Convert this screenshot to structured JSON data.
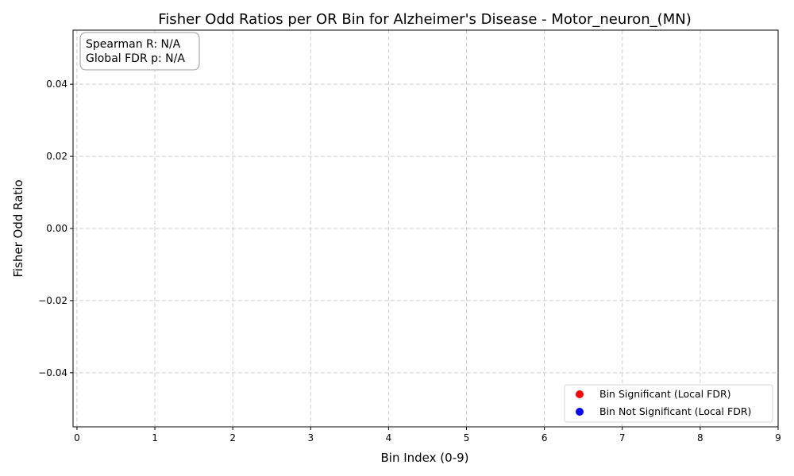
{
  "chart_data": {
    "type": "scatter",
    "title": "Fisher Odd Ratios per OR Bin for Alzheimer's Disease - Motor_neuron_(MN)",
    "xlabel": "Bin Index (0-9)",
    "ylabel": "Fisher Odd Ratio",
    "xlim": [
      -0.05,
      9
    ],
    "ylim": [
      -0.055,
      0.055
    ],
    "xticks": [
      0,
      1,
      2,
      3,
      4,
      5,
      6,
      7,
      8,
      9
    ],
    "xtick_labels": [
      "0",
      "1",
      "2",
      "3",
      "4",
      "5",
      "6",
      "7",
      "8",
      "9"
    ],
    "yticks": [
      0.04,
      0.02,
      0.0,
      -0.02,
      -0.04
    ],
    "ytick_labels": [
      "0.04",
      "0.02",
      "0.00",
      "−0.02",
      "−0.04"
    ],
    "grid": true,
    "series": [
      {
        "name": "Bin Significant (Local FDR)",
        "color": "#ff0000",
        "points": []
      },
      {
        "name": "Bin Not Significant (Local FDR)",
        "color": "#0000ff",
        "points": []
      }
    ],
    "annotation": {
      "spearman": "Spearman R: N/A",
      "fdr": "Global FDR p: N/A"
    },
    "legend_location": "lower-right"
  }
}
